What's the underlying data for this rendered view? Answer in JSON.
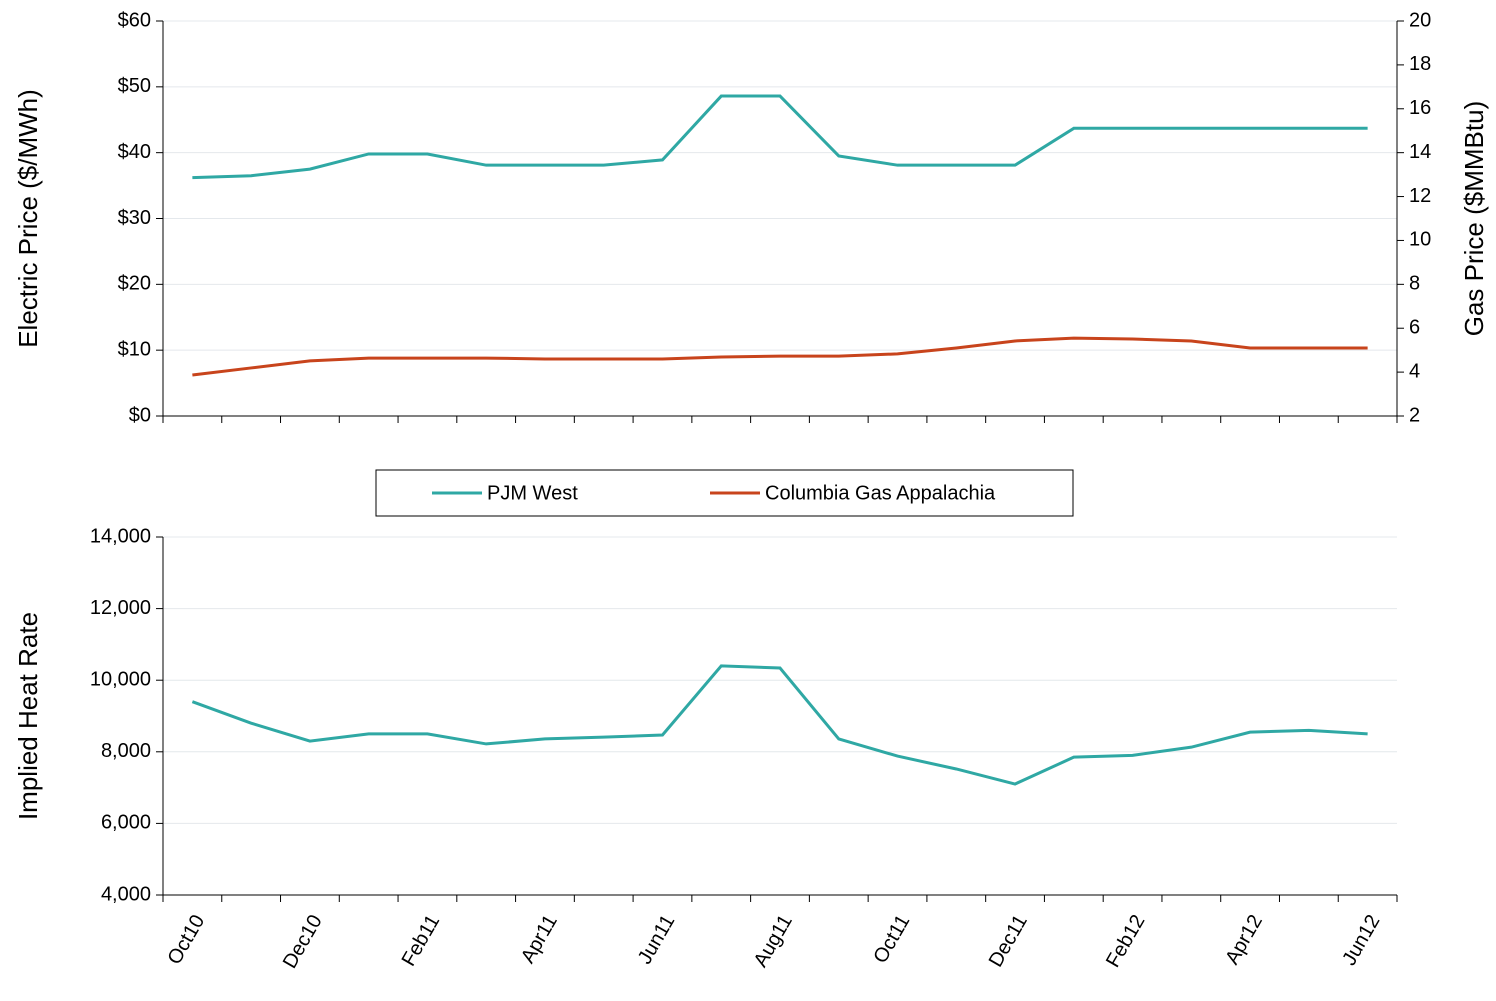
{
  "chart_data": [
    {
      "type": "line",
      "y_label": "Electric Price ($/MWh)",
      "y2_label": "Gas Price ($MMBtu)",
      "ylim": [
        0,
        60
      ],
      "yticks": [
        {
          "value": 0,
          "label": "$0"
        },
        {
          "value": 10,
          "label": "$10"
        },
        {
          "value": 20,
          "label": "$20"
        },
        {
          "value": 30,
          "label": "$30"
        },
        {
          "value": 40,
          "label": "$40"
        },
        {
          "value": 50,
          "label": "$50"
        },
        {
          "value": 60,
          "label": "$60"
        }
      ],
      "y2lim": [
        2,
        20
      ],
      "y2ticks": [
        2,
        4,
        6,
        8,
        10,
        12,
        14,
        16,
        18,
        20
      ],
      "grid": true,
      "legend": "bottom",
      "series": [
        {
          "name": "PJM West",
          "color": "#2fa8a4",
          "values": [
            36.2,
            36.5,
            37.5,
            39.8,
            39.8,
            38.1,
            38.1,
            38.1,
            38.9,
            48.6,
            48.6,
            39.5,
            38.1,
            38.1,
            38.1,
            43.7,
            43.7,
            43.7,
            43.7,
            43.7,
            43.7
          ]
        },
        {
          "name": "Columbia Gas Appalachia",
          "color": "#c8441c",
          "axis": "y2",
          "values": [
            3.87,
            4.19,
            4.51,
            4.64,
            4.64,
            4.64,
            4.6,
            4.6,
            4.6,
            4.69,
            4.73,
            4.73,
            4.83,
            5.1,
            5.42,
            5.55,
            5.51,
            5.42,
            5.1,
            5.1,
            5.1
          ]
        }
      ]
    },
    {
      "type": "line",
      "y_label": "Implied Heat Rate",
      "categories": [
        "Oct10",
        null,
        "Dec10",
        null,
        "Feb11",
        null,
        "Apr11",
        null,
        "Jun11",
        null,
        "Aug11",
        null,
        "Oct11",
        null,
        "Dec11",
        null,
        "Feb12",
        null,
        "Apr12",
        null,
        "Jun12"
      ],
      "ylim": [
        4000,
        14000
      ],
      "yticks": [
        {
          "value": 4000,
          "label": "4,000"
        },
        {
          "value": 6000,
          "label": "6,000"
        },
        {
          "value": 8000,
          "label": "8,000"
        },
        {
          "value": 10000,
          "label": "10,000"
        },
        {
          "value": 12000,
          "label": "12,000"
        },
        {
          "value": 14000,
          "label": "14,000"
        }
      ],
      "grid": true,
      "color": "#2fa8a4",
      "values": [
        9400,
        8800,
        8300,
        8500,
        8500,
        8220,
        8360,
        8410,
        8470,
        10400,
        10340,
        8360,
        7880,
        7520,
        7100,
        7850,
        7900,
        8130,
        8550,
        8600,
        8500
      ]
    }
  ]
}
